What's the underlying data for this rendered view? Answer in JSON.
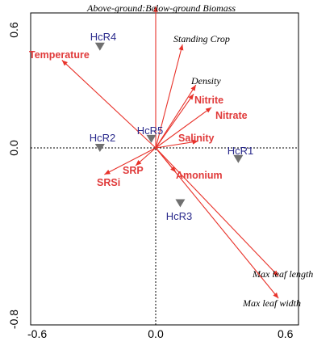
{
  "chart_data": {
    "type": "scatter",
    "subtype": "ordination-biplot",
    "xlim": [
      -0.6,
      0.6
    ],
    "ylim": [
      -0.8,
      0.6
    ],
    "x_ticks": [
      "-0.6",
      "0.0",
      "0.6"
    ],
    "y_ticks": [
      "0.6",
      "0.0",
      "-0.8"
    ],
    "grid": false,
    "colors": {
      "arrow": "#e8322a",
      "env_label": "#e03a3a",
      "site_label": "#2a2a8c",
      "site_marker": "#707070"
    },
    "env_vectors": [
      {
        "name": "Above-ground:Below-ground Biomass",
        "x": 0.0,
        "y": 0.63,
        "style": "italic"
      },
      {
        "name": "Standing Crop",
        "x": 0.12,
        "y": 0.46,
        "style": "italic"
      },
      {
        "name": "Temperature",
        "x": -0.42,
        "y": 0.39,
        "style": "bold"
      },
      {
        "name": "Density",
        "x": 0.18,
        "y": 0.28,
        "style": "italic"
      },
      {
        "name": "Nitrite",
        "x": 0.17,
        "y": 0.24,
        "style": "bold"
      },
      {
        "name": "Nitrate",
        "x": 0.25,
        "y": 0.18,
        "style": "bold"
      },
      {
        "name": "Salinity",
        "x": 0.19,
        "y": 0.03,
        "style": "bold"
      },
      {
        "name": "Amonium",
        "x": 0.09,
        "y": -0.11,
        "style": "bold"
      },
      {
        "name": "SRP",
        "x": -0.09,
        "y": -0.08,
        "style": "bold"
      },
      {
        "name": "SRSi",
        "x": -0.23,
        "y": -0.12,
        "style": "bold"
      },
      {
        "name": "Max leaf length",
        "x": 0.55,
        "y": -0.58,
        "style": "italic"
      },
      {
        "name": "Max leaf width",
        "x": 0.55,
        "y": -0.68,
        "style": "italic"
      }
    ],
    "sites": [
      {
        "name": "HcR4",
        "x": -0.25,
        "y": 0.45
      },
      {
        "name": "HcR2",
        "x": -0.25,
        "y": 0.0
      },
      {
        "name": "HcR5",
        "x": -0.02,
        "y": 0.04
      },
      {
        "name": "HcR1",
        "x": 0.37,
        "y": -0.05
      },
      {
        "name": "HcR3",
        "x": 0.11,
        "y": -0.25
      }
    ]
  }
}
